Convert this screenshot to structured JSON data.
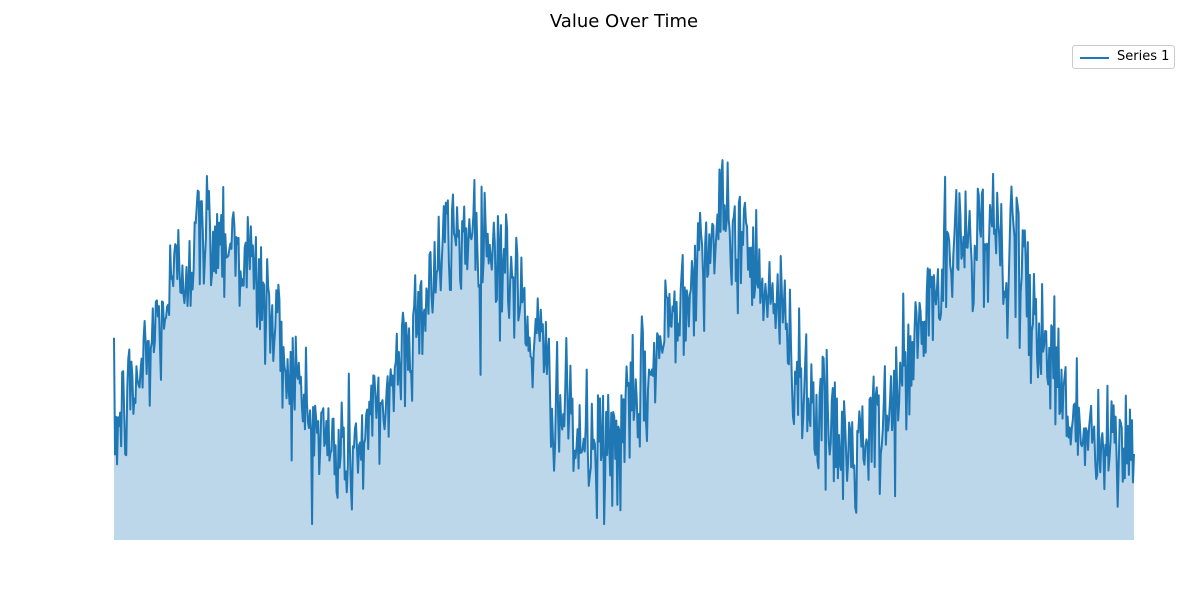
{
  "chart_data": {
    "type": "area",
    "title": "Value Over Time",
    "xlabel": "",
    "ylabel": "",
    "axes_visible": false,
    "grid": false,
    "legend_position": "top-right",
    "series": [
      {
        "name": "Series 1",
        "color": "#1f77b4",
        "fill_color": "#bcd6ea",
        "pattern": {
          "points": 1000,
          "cycles": 4,
          "baseline": 0,
          "mean": 0.5,
          "amplitude": 0.28,
          "phase_of_first_peak": 0.1,
          "noise_sd": 0.085,
          "observed_min": 0.04,
          "observed_max": 1.0
        },
        "peaks_at_fraction_of_x": [
          0.14,
          0.37,
          0.63,
          0.88
        ],
        "troughs_at_fraction_of_x": [
          0.27,
          0.51,
          0.76,
          1.0
        ]
      }
    ]
  }
}
